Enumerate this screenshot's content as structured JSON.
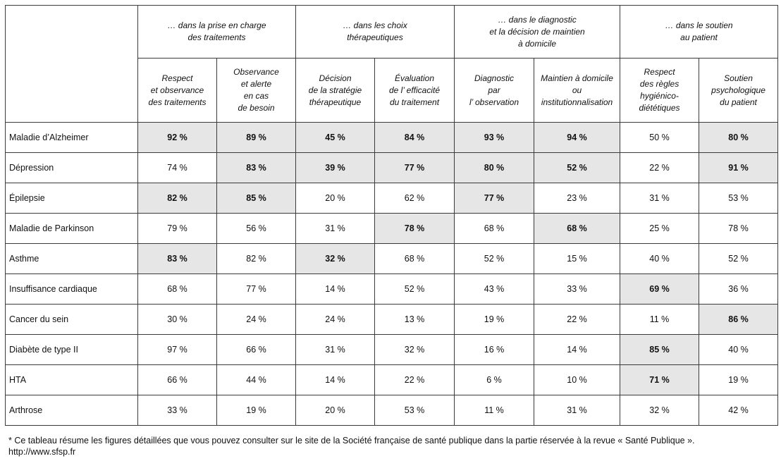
{
  "groups": [
    {
      "label": "… dans la prise en charge\ndes traitements"
    },
    {
      "label": "… dans les choix\nthérapeutiques"
    },
    {
      "label": "… dans le diagnostic\net la décision de maintien\nà domicile"
    },
    {
      "label": "… dans le soutien\nau patient"
    }
  ],
  "columns": [
    {
      "label": "Respect\net observance\ndes traitements"
    },
    {
      "label": "Observance\net alerte\nen cas\nde besoin"
    },
    {
      "label": "Décision\nde la stratégie\nthérapeutique"
    },
    {
      "label": "Évaluation\nde  l’ efficacité\ndu traitement"
    },
    {
      "label": "Diagnostic\npar\nl’ observation"
    },
    {
      "label": "Maintien à domicile\nou\ninstitutionnalisation"
    },
    {
      "label": "Respect\ndes règles\nhygiénico-\ndiététiques"
    },
    {
      "label": "Soutien\npsychologique\ndu patient"
    }
  ],
  "rows": [
    {
      "label": "Maladie d’Alzheimer",
      "cells": [
        {
          "v": "92 %",
          "hl": true
        },
        {
          "v": "89 %",
          "hl": true
        },
        {
          "v": "45 %",
          "hl": true
        },
        {
          "v": "84 %",
          "hl": true
        },
        {
          "v": "93 %",
          "hl": true
        },
        {
          "v": "94 %",
          "hl": true
        },
        {
          "v": "50 %",
          "hl": false
        },
        {
          "v": "80 %",
          "hl": true
        }
      ]
    },
    {
      "label": "Dépression",
      "cells": [
        {
          "v": "74 %",
          "hl": false
        },
        {
          "v": "83 %",
          "hl": true
        },
        {
          "v": "39 %",
          "hl": true
        },
        {
          "v": "77 %",
          "hl": true
        },
        {
          "v": "80 %",
          "hl": true
        },
        {
          "v": "52 %",
          "hl": true
        },
        {
          "v": "22 %",
          "hl": false
        },
        {
          "v": "91 %",
          "hl": true
        }
      ]
    },
    {
      "label": "Épilepsie",
      "cells": [
        {
          "v": "82 %",
          "hl": true
        },
        {
          "v": "85 %",
          "hl": true
        },
        {
          "v": "20 %",
          "hl": false
        },
        {
          "v": "62 %",
          "hl": false
        },
        {
          "v": "77 %",
          "hl": true
        },
        {
          "v": "23 %",
          "hl": false
        },
        {
          "v": "31 %",
          "hl": false
        },
        {
          "v": "53 %",
          "hl": false
        }
      ]
    },
    {
      "label": "Maladie de Parkinson",
      "cells": [
        {
          "v": "79 %",
          "hl": false
        },
        {
          "v": "56 %",
          "hl": false
        },
        {
          "v": "31 %",
          "hl": false
        },
        {
          "v": "78 %",
          "hl": true
        },
        {
          "v": "68 %",
          "hl": false
        },
        {
          "v": "68 %",
          "hl": true
        },
        {
          "v": "25 %",
          "hl": false
        },
        {
          "v": "78 %",
          "hl": false
        }
      ]
    },
    {
      "label": "Asthme",
      "cells": [
        {
          "v": "83 %",
          "hl": true
        },
        {
          "v": "82 %",
          "hl": false
        },
        {
          "v": "32 %",
          "hl": true
        },
        {
          "v": "68 %",
          "hl": false
        },
        {
          "v": "52 %",
          "hl": false
        },
        {
          "v": "15 %",
          "hl": false
        },
        {
          "v": "40 %",
          "hl": false
        },
        {
          "v": "52 %",
          "hl": false
        }
      ]
    },
    {
      "label": "Insuffisance cardiaque",
      "cells": [
        {
          "v": "68 %",
          "hl": false
        },
        {
          "v": "77 %",
          "hl": false
        },
        {
          "v": "14 %",
          "hl": false
        },
        {
          "v": "52 %",
          "hl": false
        },
        {
          "v": "43 %",
          "hl": false
        },
        {
          "v": "33 %",
          "hl": false
        },
        {
          "v": "69 %",
          "hl": true
        },
        {
          "v": "36 %",
          "hl": false
        }
      ]
    },
    {
      "label": "Cancer du sein",
      "cells": [
        {
          "v": "30 %",
          "hl": false
        },
        {
          "v": "24 %",
          "hl": false
        },
        {
          "v": "24 %",
          "hl": false
        },
        {
          "v": "13 %",
          "hl": false
        },
        {
          "v": "19 %",
          "hl": false
        },
        {
          "v": "22 %",
          "hl": false
        },
        {
          "v": "11 %",
          "hl": false
        },
        {
          "v": "86 %",
          "hl": true
        }
      ]
    },
    {
      "label": "Diabète de type II",
      "cells": [
        {
          "v": "97 %",
          "hl": false
        },
        {
          "v": "66 %",
          "hl": false
        },
        {
          "v": "31 %",
          "hl": false
        },
        {
          "v": "32 %",
          "hl": false
        },
        {
          "v": "16 %",
          "hl": false
        },
        {
          "v": "14 %",
          "hl": false
        },
        {
          "v": "85 %",
          "hl": true
        },
        {
          "v": "40 %",
          "hl": false
        }
      ]
    },
    {
      "label": "HTA",
      "cells": [
        {
          "v": "66 %",
          "hl": false
        },
        {
          "v": "44 %",
          "hl": false
        },
        {
          "v": "14 %",
          "hl": false
        },
        {
          "v": "22 %",
          "hl": false
        },
        {
          "v": "6 %",
          "hl": false
        },
        {
          "v": "10 %",
          "hl": false
        },
        {
          "v": "71 %",
          "hl": true
        },
        {
          "v": "19 %",
          "hl": false
        }
      ]
    },
    {
      "label": "Arthrose",
      "cells": [
        {
          "v": "33 %",
          "hl": false
        },
        {
          "v": "19 %",
          "hl": false
        },
        {
          "v": "20 %",
          "hl": false
        },
        {
          "v": "53 %",
          "hl": false
        },
        {
          "v": "11 %",
          "hl": false
        },
        {
          "v": "31 %",
          "hl": false
        },
        {
          "v": "32 %",
          "hl": false
        },
        {
          "v": "42 %",
          "hl": false
        }
      ]
    }
  ],
  "footnote": {
    "line1": "* Ce tableau résume les figures détaillées que vous pouvez consulter sur le site de la Société française de santé publique dans la partie réservée à la revue « Santé Publique ».",
    "line2": "http://www.sfsp.fr"
  },
  "colors": {
    "highlight": "#e6e6e6",
    "border": "#3a3a3a"
  }
}
